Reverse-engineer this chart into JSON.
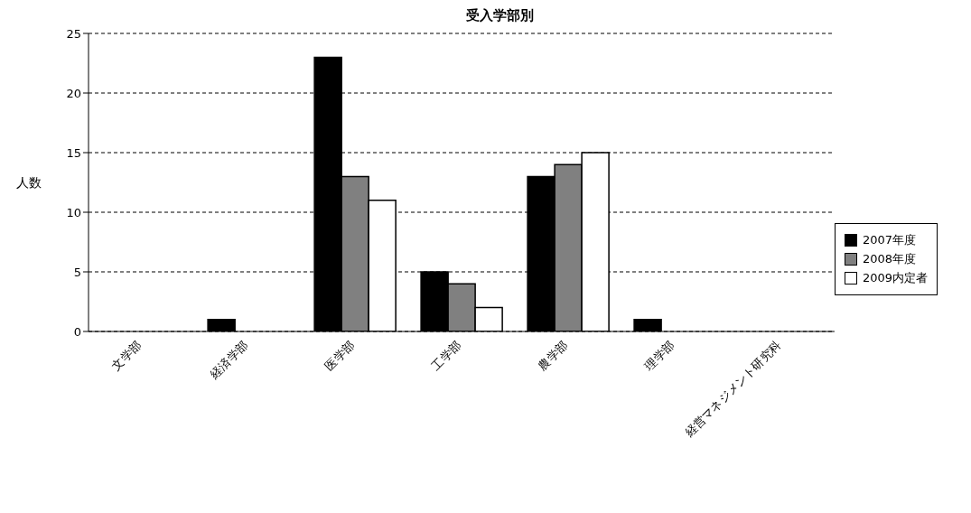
{
  "chart_data": {
    "type": "bar",
    "title": "受入学部別",
    "ylabel": "人数",
    "categories": [
      "文学部",
      "経済学部",
      "医学部",
      "工学部",
      "農学部",
      "理学部",
      "経営マネジメント研究科"
    ],
    "series": [
      {
        "name": "2007年度",
        "color": "#000000",
        "values": [
          0,
          1,
          23,
          5,
          13,
          1,
          0
        ]
      },
      {
        "name": "2008年度",
        "color": "#808080",
        "values": [
          0,
          0,
          13,
          4,
          14,
          0,
          0
        ]
      },
      {
        "name": "2009内定者",
        "color": "#ffffff",
        "values": [
          0,
          0,
          11,
          2,
          15,
          0,
          0
        ]
      }
    ],
    "ylim": [
      0,
      25
    ],
    "yticks": [
      0,
      5,
      10,
      15,
      20,
      25
    ],
    "grid": "y",
    "legend": "right"
  }
}
